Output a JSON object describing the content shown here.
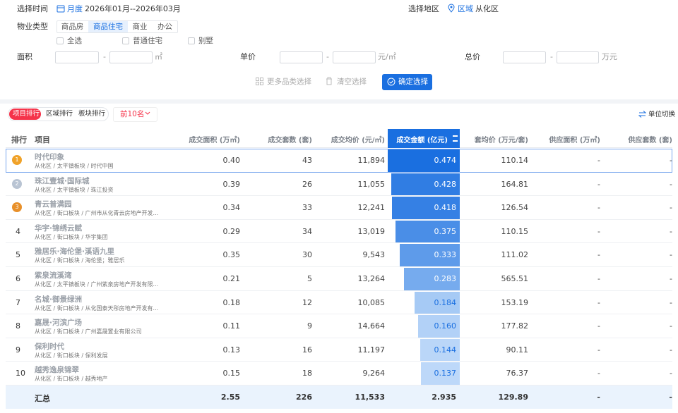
{
  "filters": {
    "time": {
      "label": "选择时间",
      "mode": "月度",
      "range": "2026年01月--2026年03月"
    },
    "region": {
      "label": "选择地区",
      "mode": "区域",
      "value": "从化区"
    },
    "property": {
      "label": "物业类型",
      "tabs": [
        "商品房",
        "商品住宅",
        "商业",
        "办公"
      ],
      "options": [
        "全选",
        "普通住宅",
        "别墅"
      ]
    },
    "area": {
      "label": "面积",
      "separator": "-",
      "unit": "㎡"
    },
    "unit_price": {
      "label": "单价",
      "separator": "-",
      "unit": "元/㎡"
    },
    "total_price": {
      "label": "总价",
      "separator": "-",
      "unit": "万元"
    },
    "buttons": [
      "更多品类选择",
      "清空选择",
      "确定选择"
    ]
  },
  "ranking": {
    "tabs": [
      "项目排行",
      "区域排行",
      "板块排行"
    ],
    "top": "前10名",
    "unit_switch": "单位切换"
  },
  "table": {
    "columns": [
      "排行",
      "项目",
      "成交面积 (万㎡)",
      "成交套数 (套)",
      "成交均价 (元/㎡)",
      "成交金额 (亿元)",
      "套均价 (万元/套)",
      "供应面积 (万㎡)",
      "供应套数 (套)"
    ],
    "rows": [
      {
        "rank": "1",
        "name": "时代印象",
        "info": "从化区 / 太平镇板块 / 时代中国",
        "cells": [
          "0.40",
          "43",
          "11,894",
          "0.474",
          "110.14",
          "-",
          "-"
        ]
      },
      {
        "rank": "2",
        "name": "珠江壹城·国际城",
        "info": "从化区 / 太平镇板块 / 珠江投资",
        "cells": [
          "0.39",
          "26",
          "11,055",
          "0.428",
          "164.81",
          "-",
          "-"
        ]
      },
      {
        "rank": "3",
        "name": "青云普满园",
        "info": "从化区 / 街口板块 / 广州市从化青云房地产开发...",
        "cells": [
          "0.34",
          "33",
          "12,241",
          "0.418",
          "126.54",
          "-",
          "-"
        ]
      },
      {
        "rank": "4",
        "name": "华宇·锦绣云赋",
        "info": "从化区 / 街口板块 / 华宇集团",
        "cells": [
          "0.29",
          "34",
          "13,019",
          "0.375",
          "110.15",
          "-",
          "-"
        ]
      },
      {
        "rank": "5",
        "name": "雅居乐·海伦堡·溪语九里",
        "info": "从化区 / 街口板块 / 海伦堡；雅居乐",
        "cells": [
          "0.35",
          "30",
          "9,543",
          "0.333",
          "111.02",
          "-",
          "-"
        ]
      },
      {
        "rank": "6",
        "name": "紫泉流溪湾",
        "info": "从化区 / 太平镇板块 / 广州紫泉房地产开发有限...",
        "cells": [
          "0.21",
          "5",
          "13,264",
          "0.283",
          "565.51",
          "-",
          "-"
        ]
      },
      {
        "rank": "7",
        "name": "名城·御景绿洲",
        "info": "从化区 / 街口板块 / 从化国泰天彤房地产开发有...",
        "cells": [
          "0.18",
          "12",
          "10,085",
          "0.184",
          "153.19",
          "-",
          "-"
        ]
      },
      {
        "rank": "8",
        "name": "嘉晟·河滨广场",
        "info": "从化区 / 街口板块 / 广州嘉晟置业有限公司",
        "cells": [
          "0.11",
          "9",
          "14,664",
          "0.160",
          "177.82",
          "-",
          "-"
        ]
      },
      {
        "rank": "9",
        "name": "保利时代",
        "info": "从化区 / 街口板块 / 保利发展",
        "cells": [
          "0.13",
          "16",
          "11,197",
          "0.144",
          "90.11",
          "-",
          "-"
        ]
      },
      {
        "rank": "10",
        "name": "越秀逸泉锦翠",
        "info": "从化区 / 街口板块 / 越秀地产",
        "cells": [
          "0.15",
          "18",
          "9,264",
          "0.137",
          "76.37",
          "-",
          "-"
        ]
      }
    ],
    "total": {
      "label": "汇总",
      "cells": [
        "2.55",
        "226",
        "11,533",
        "2.935",
        "129.89",
        "-",
        "-"
      ]
    }
  }
}
